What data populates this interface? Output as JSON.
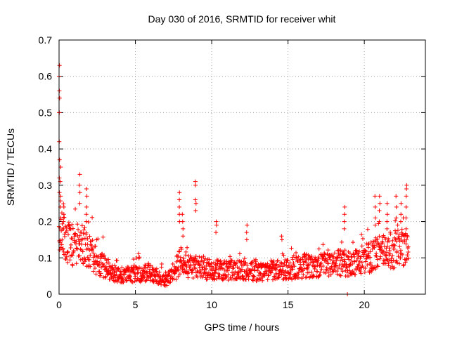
{
  "chart_data": {
    "type": "scatter",
    "title": "Day 030 of 2016, SRMTID for receiver whit",
    "xlabel": "GPS time / hours",
    "ylabel": "SRMTID / TECUs",
    "xlim": [
      0,
      24
    ],
    "ylim": [
      0,
      0.7
    ],
    "xticks": [
      0,
      5,
      10,
      15,
      20
    ],
    "yticks": [
      0,
      0.1,
      0.2,
      0.3,
      0.4,
      0.5,
      0.6,
      0.7
    ],
    "xtick_labels": [
      "0",
      "5",
      "10",
      "15",
      "20"
    ],
    "ytick_labels": [
      "0",
      "0.1",
      "0.2",
      "0.3",
      "0.4",
      "0.5",
      "0.6",
      "0.7"
    ],
    "grid": true,
    "marker": "+",
    "marker_color": "#ff0000",
    "series": [
      {
        "name": "SRMTID",
        "profile": [
          [
            0.0,
            0.12
          ],
          [
            0.15,
            0.17
          ],
          [
            0.5,
            0.15
          ],
          [
            1.0,
            0.14
          ],
          [
            1.5,
            0.15
          ],
          [
            2.0,
            0.13
          ],
          [
            2.5,
            0.09
          ],
          [
            3.0,
            0.08
          ],
          [
            3.5,
            0.06
          ],
          [
            4.0,
            0.055
          ],
          [
            5.0,
            0.06
          ],
          [
            6.0,
            0.06
          ],
          [
            7.0,
            0.04
          ],
          [
            7.5,
            0.06
          ],
          [
            8.0,
            0.1
          ],
          [
            8.5,
            0.08
          ],
          [
            9.0,
            0.08
          ],
          [
            10.0,
            0.07
          ],
          [
            11.0,
            0.07
          ],
          [
            12.0,
            0.07
          ],
          [
            13.0,
            0.065
          ],
          [
            14.0,
            0.07
          ],
          [
            15.0,
            0.07
          ],
          [
            16.0,
            0.08
          ],
          [
            17.0,
            0.08
          ],
          [
            18.0,
            0.09
          ],
          [
            19.0,
            0.09
          ],
          [
            20.0,
            0.1
          ],
          [
            21.0,
            0.12
          ],
          [
            22.0,
            0.13
          ],
          [
            22.9,
            0.14
          ]
        ],
        "spikes": [
          {
            "x": 0.02,
            "values": [
              0.63,
              0.6,
              0.56,
              0.54,
              0.5,
              0.5,
              0.42,
              0.37,
              0.32,
              0.28
            ]
          },
          {
            "x": 0.1,
            "values": [
              0.35,
              0.31,
              0.27,
              0.24,
              0.21
            ]
          },
          {
            "x": 0.3,
            "values": [
              0.24,
              0.22,
              0.2,
              0.18
            ]
          },
          {
            "x": 1.35,
            "values": [
              0.33,
              0.3,
              0.28,
              0.25
            ]
          },
          {
            "x": 1.8,
            "values": [
              0.29,
              0.27,
              0.24,
              0.22,
              0.2
            ]
          },
          {
            "x": 7.9,
            "values": [
              0.28,
              0.26,
              0.24,
              0.22,
              0.2
            ]
          },
          {
            "x": 8.1,
            "values": [
              0.22,
              0.2,
              0.18,
              0.16
            ]
          },
          {
            "x": 8.95,
            "values": [
              0.31,
              0.3,
              0.26,
              0.25,
              0.23
            ]
          },
          {
            "x": 10.3,
            "values": [
              0.2,
              0.19,
              0.17
            ]
          },
          {
            "x": 12.3,
            "values": [
              0.19,
              0.17,
              0.15
            ]
          },
          {
            "x": 14.6,
            "values": [
              0.16,
              0.15
            ]
          },
          {
            "x": 18.7,
            "values": [
              0.24,
              0.22,
              0.2,
              0.18
            ]
          },
          {
            "x": 18.9,
            "values": [
              0.0
            ]
          },
          {
            "x": 20.7,
            "values": [
              0.27,
              0.24,
              0.21,
              0.19
            ]
          },
          {
            "x": 21.0,
            "values": [
              0.27,
              0.25,
              0.23,
              0.2
            ]
          },
          {
            "x": 21.5,
            "values": [
              0.25,
              0.22,
              0.2,
              0.18
            ]
          },
          {
            "x": 22.1,
            "values": [
              0.27,
              0.24,
              0.21
            ]
          },
          {
            "x": 22.4,
            "values": [
              0.25,
              0.22,
              0.2
            ]
          },
          {
            "x": 22.75,
            "values": [
              0.3,
              0.29,
              0.27,
              0.24,
              0.21,
              0.18
            ]
          }
        ]
      }
    ]
  }
}
